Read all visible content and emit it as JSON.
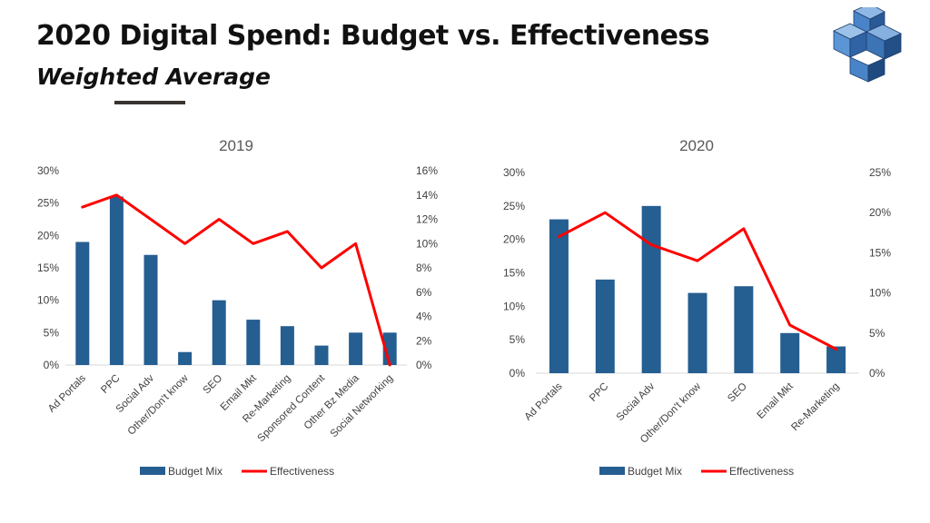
{
  "slide": {
    "title": "2020 Digital Spend:  Budget vs. Effectiveness",
    "subtitle": "Weighted Average",
    "logo_icon": "interlocking-cubes-logo-icon",
    "colors": {
      "bar": "#255E91",
      "line": "#FF0000",
      "logo_blue": "#3D74B6"
    }
  },
  "chart_data": [
    {
      "type": "bar",
      "title": "2019",
      "categories": [
        "Ad Portals",
        "PPC",
        "Social Adv",
        "Other/Don't know",
        "SEO",
        "Email Mkt",
        "Re-Marketing",
        "Sponsored Content",
        "Other Bz Media",
        "Social Networking"
      ],
      "series": [
        {
          "name": "Budget Mix",
          "type": "bar",
          "axis": "left",
          "values": [
            19,
            26,
            17,
            2,
            10,
            7,
            6,
            3,
            5,
            5
          ]
        },
        {
          "name": "Effectiveness",
          "type": "line",
          "axis": "right",
          "values": [
            13,
            14,
            12,
            10,
            12,
            10,
            11,
            8,
            10,
            0
          ]
        }
      ],
      "y_left": {
        "min": 0,
        "max": 30,
        "step": 5,
        "ticks": [
          "0%",
          "5%",
          "10%",
          "15%",
          "20%",
          "25%",
          "30%"
        ]
      },
      "y_right": {
        "min": 0,
        "max": 16,
        "step": 2,
        "ticks": [
          "0%",
          "2%",
          "4%",
          "6%",
          "8%",
          "10%",
          "12%",
          "14%",
          "16%"
        ]
      },
      "legend": "bottom",
      "grid": false
    },
    {
      "type": "bar",
      "title": "2020",
      "categories": [
        "Ad Portals",
        "PPC",
        "Social Adv",
        "Other/Don't know",
        "SEO",
        "Email Mkt",
        "Re-Marketing"
      ],
      "series": [
        {
          "name": "Budget Mix",
          "type": "bar",
          "axis": "left",
          "values": [
            23,
            14,
            25,
            12,
            13,
            6,
            4
          ]
        },
        {
          "name": "Effectiveness",
          "type": "line",
          "axis": "right",
          "values": [
            17,
            20,
            16,
            14,
            18,
            6,
            3
          ]
        }
      ],
      "y_left": {
        "min": 0,
        "max": 30,
        "step": 5,
        "ticks": [
          "0%",
          "5%",
          "10%",
          "15%",
          "20%",
          "25%",
          "30%"
        ]
      },
      "y_right": {
        "min": 0,
        "max": 25,
        "step": 5,
        "ticks": [
          "0%",
          "5%",
          "10%",
          "15%",
          "20%",
          "25%"
        ]
      },
      "legend": "bottom",
      "grid": false
    }
  ]
}
